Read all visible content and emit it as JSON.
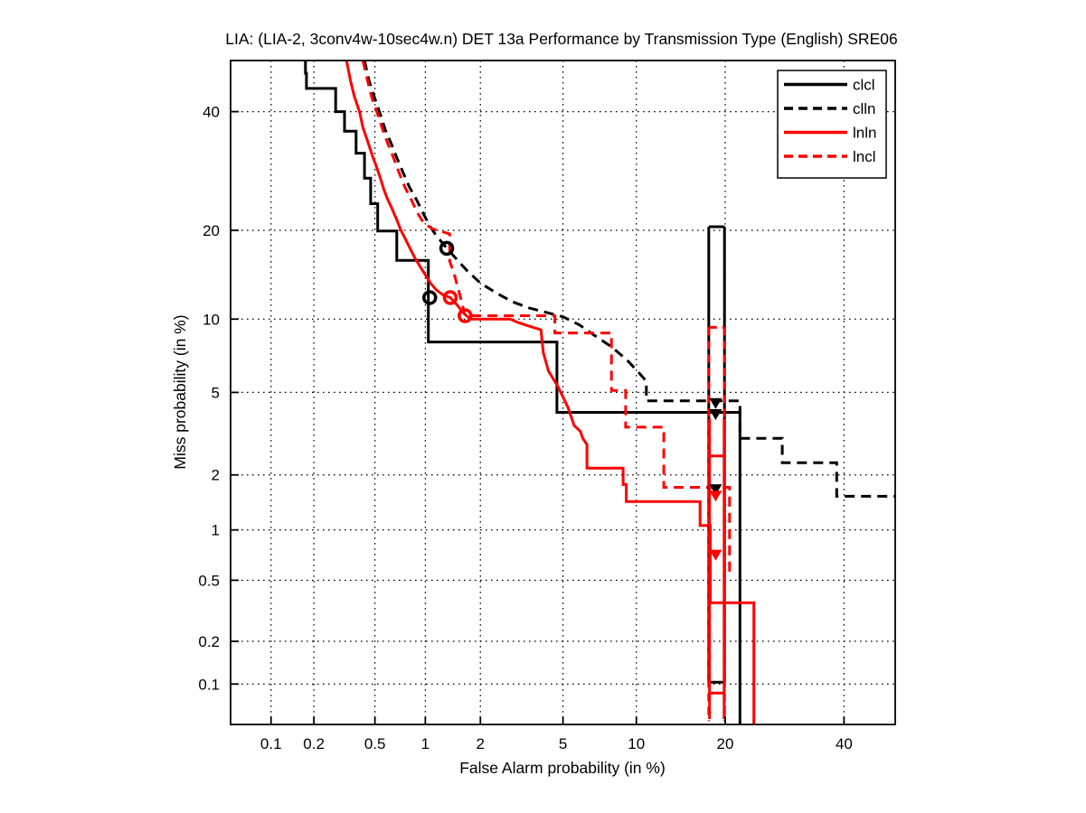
{
  "chart_data": {
    "type": "line",
    "subtype": "DET-curve",
    "title": "LIA: (LIA-2, 3conv4w-10sec4w.n) DET 13a Performance by Transmission Type (English) SRE06",
    "xlabel": "False Alarm probability (in %)",
    "ylabel": "Miss probability (in %)",
    "scale": "normal-deviate-probit",
    "xlim": [
      0.05,
      50
    ],
    "ylim": [
      0.05,
      50
    ],
    "xticks": [
      "0.1",
      "0.2",
      "0.5",
      "1",
      "2",
      "5",
      "10",
      "20",
      "40"
    ],
    "yticks": [
      "0.1",
      "0.2",
      "0.5",
      "1",
      "2",
      "5",
      "10",
      "20",
      "40"
    ],
    "grid": "dotted",
    "legend_position": "top-right",
    "colors": {
      "black": "#000000",
      "red": "#ff0000"
    },
    "series": [
      {
        "name": "clcl",
        "color": "#000000",
        "dash": "solid",
        "points": [
          [
            0.175,
            50
          ],
          [
            0.175,
            47.5
          ],
          [
            0.178,
            47.5
          ],
          [
            0.178,
            44.5
          ],
          [
            0.28,
            44.5
          ],
          [
            0.28,
            40
          ],
          [
            0.32,
            40
          ],
          [
            0.32,
            36.3
          ],
          [
            0.38,
            36.3
          ],
          [
            0.38,
            32.3
          ],
          [
            0.43,
            32.3
          ],
          [
            0.43,
            28
          ],
          [
            0.47,
            28
          ],
          [
            0.47,
            23.9
          ],
          [
            0.52,
            23.9
          ],
          [
            0.52,
            19.9
          ],
          [
            0.68,
            19.9
          ],
          [
            0.68,
            16.1
          ],
          [
            1.04,
            16.1
          ],
          [
            1.04,
            8.15
          ],
          [
            4.7,
            8.15
          ],
          [
            4.7,
            4.06
          ],
          [
            22.1,
            4.06
          ],
          [
            22.1,
            0.05
          ]
        ]
      },
      {
        "name": "clln",
        "color": "#000000",
        "dash": "dashed",
        "points": [
          [
            0.43,
            50
          ],
          [
            0.46,
            46
          ],
          [
            0.5,
            42.5
          ],
          [
            0.54,
            39.5
          ],
          [
            0.58,
            36.5
          ],
          [
            0.63,
            34
          ],
          [
            0.68,
            31.5
          ],
          [
            0.74,
            29
          ],
          [
            0.81,
            26.5
          ],
          [
            0.89,
            24.5
          ],
          [
            0.97,
            22.5
          ],
          [
            1.05,
            20.8
          ],
          [
            1.15,
            19.3
          ],
          [
            1.25,
            18.3
          ],
          [
            1.32,
            17.6
          ],
          [
            1.5,
            16.2
          ],
          [
            1.7,
            14.9
          ],
          [
            2.0,
            13.5
          ],
          [
            2.4,
            12.5
          ],
          [
            2.9,
            11.6
          ],
          [
            3.5,
            11.0
          ],
          [
            4.2,
            10.6
          ],
          [
            5.0,
            10.2
          ],
          [
            5.9,
            9.5
          ],
          [
            6.9,
            8.6
          ],
          [
            8.0,
            7.8
          ],
          [
            9.2,
            6.9
          ],
          [
            10.2,
            6.1
          ],
          [
            10.9,
            5.6
          ],
          [
            10.9,
            4.58
          ],
          [
            22.1,
            4.58
          ],
          [
            22.1,
            3.06
          ],
          [
            28.8,
            3.06
          ],
          [
            28.8,
            2.31
          ],
          [
            38.6,
            2.31
          ],
          [
            38.6,
            1.54
          ],
          [
            50,
            1.54
          ]
        ]
      },
      {
        "name": "lnln",
        "color": "#ff0000",
        "dash": "solid",
        "points": [
          [
            0.33,
            50
          ],
          [
            0.35,
            46
          ],
          [
            0.37,
            43
          ],
          [
            0.4,
            40
          ],
          [
            0.42,
            37
          ],
          [
            0.45,
            34.5
          ],
          [
            0.48,
            32
          ],
          [
            0.51,
            30
          ],
          [
            0.54,
            28
          ],
          [
            0.57,
            26
          ],
          [
            0.6,
            24.5
          ],
          [
            0.64,
            23
          ],
          [
            0.68,
            21.5
          ],
          [
            0.72,
            20
          ],
          [
            0.77,
            18.7
          ],
          [
            0.82,
            17.5
          ],
          [
            0.87,
            16.4
          ],
          [
            0.93,
            15.4
          ],
          [
            1.0,
            14.4
          ],
          [
            1.07,
            13.5
          ],
          [
            1.15,
            12.8
          ],
          [
            1.25,
            12.3
          ],
          [
            1.38,
            12.0
          ],
          [
            1.5,
            11.3
          ],
          [
            1.6,
            10.7
          ],
          [
            1.7,
            10.25
          ],
          [
            1.79,
            10.0
          ],
          [
            2.83,
            10.0
          ],
          [
            3.1,
            9.7
          ],
          [
            3.5,
            9.4
          ],
          [
            3.97,
            9.1
          ],
          [
            4.07,
            7.4
          ],
          [
            4.3,
            6.2
          ],
          [
            4.75,
            5.3
          ],
          [
            5.25,
            4.3
          ],
          [
            5.6,
            3.52
          ],
          [
            5.95,
            3.3
          ],
          [
            6.1,
            3.05
          ],
          [
            6.35,
            2.85
          ],
          [
            6.35,
            2.17
          ],
          [
            8.9,
            2.17
          ],
          [
            8.9,
            1.78
          ],
          [
            9.15,
            1.78
          ],
          [
            9.15,
            1.44
          ],
          [
            16.7,
            1.44
          ],
          [
            16.7,
            1.06
          ],
          [
            18.0,
            1.06
          ],
          [
            18.0,
            0.36
          ],
          [
            24.2,
            0.36
          ],
          [
            24.2,
            0.05
          ]
        ]
      },
      {
        "name": "lncl",
        "color": "#ff0000",
        "dash": "dashed",
        "points": [
          [
            0.42,
            50
          ],
          [
            0.45,
            46
          ],
          [
            0.48,
            42.5
          ],
          [
            0.52,
            39.5
          ],
          [
            0.56,
            36.5
          ],
          [
            0.6,
            34
          ],
          [
            0.65,
            31.5
          ],
          [
            0.7,
            29
          ],
          [
            0.76,
            26.5
          ],
          [
            0.83,
            24.5
          ],
          [
            0.9,
            22.5
          ],
          [
            0.98,
            21
          ],
          [
            1.1,
            20.2
          ],
          [
            1.25,
            19.8
          ],
          [
            1.37,
            19.5
          ],
          [
            1.37,
            16
          ],
          [
            1.45,
            14.5
          ],
          [
            1.52,
            13
          ],
          [
            1.58,
            11.8
          ],
          [
            1.63,
            10.8
          ],
          [
            1.66,
            10.3
          ],
          [
            4.6,
            10.3
          ],
          [
            4.6,
            8.85
          ],
          [
            8.0,
            8.85
          ],
          [
            8.0,
            5.1
          ],
          [
            9.1,
            5.1
          ],
          [
            9.1,
            3.46
          ],
          [
            12.6,
            3.46
          ],
          [
            12.6,
            1.72
          ],
          [
            20.6,
            1.72
          ],
          [
            20.6,
            0.55
          ]
        ]
      }
    ],
    "operating_point_circles": [
      {
        "series": "clcl",
        "color": "#000000",
        "fa": 1.06,
        "miss": 12.0
      },
      {
        "series": "clln",
        "color": "#000000",
        "fa": 1.32,
        "miss": 17.6
      },
      {
        "series": "lnln",
        "color": "#ff0000",
        "fa": 1.38,
        "miss": 12.0
      },
      {
        "series": "lncl",
        "color": "#ff0000",
        "fa": 1.66,
        "miss": 10.3
      }
    ],
    "dcf_markers": [
      {
        "color": "#000000",
        "fa": 18.7,
        "miss": 4.5
      },
      {
        "color": "#000000",
        "fa": 18.7,
        "miss": 4.0
      },
      {
        "color": "#000000",
        "fa": 18.7,
        "miss": 1.69
      },
      {
        "color": "#ff0000",
        "fa": 18.7,
        "miss": 1.56
      },
      {
        "color": "#ff0000",
        "fa": 18.7,
        "miss": 0.72
      }
    ],
    "decision_boxes": [
      {
        "color": "#000000",
        "dash": "solid",
        "segments": [
          [
            [
              17.8,
              20.5
            ],
            [
              19.9,
              20.5
            ]
          ],
          [
            [
              17.8,
              20.5
            ],
            [
              17.8,
              0.103
            ]
          ],
          [
            [
              19.9,
              20.5
            ],
            [
              19.9,
              0.103
            ]
          ],
          [
            [
              17.8,
              0.103
            ],
            [
              19.9,
              0.103
            ]
          ]
        ]
      },
      {
        "color": "#ff0000",
        "dash": "dashed",
        "segments": [
          [
            [
              17.8,
              9.3
            ],
            [
              19.9,
              9.3
            ]
          ],
          [
            [
              17.8,
              9.3
            ],
            [
              17.8,
              0.053
            ]
          ],
          [
            [
              19.9,
              9.3
            ],
            [
              19.9,
              0.053
            ]
          ]
        ]
      },
      {
        "color": "#ff0000",
        "dash": "solid",
        "segments": [
          [
            [
              17.9,
              3.8
            ],
            [
              17.9,
              0.055
            ]
          ],
          [
            [
              19.85,
              3.8
            ],
            [
              19.85,
              0.055
            ]
          ],
          [
            [
              17.9,
              2.5
            ],
            [
              19.85,
              2.5
            ]
          ],
          [
            [
              17.9,
              0.086
            ],
            [
              19.85,
              0.086
            ]
          ]
        ]
      }
    ],
    "legend": [
      {
        "label": "clcl",
        "color": "#000000",
        "dash": "solid"
      },
      {
        "label": "clln",
        "color": "#000000",
        "dash": "dashed"
      },
      {
        "label": "lnln",
        "color": "#ff0000",
        "dash": "solid"
      },
      {
        "label": "lncl",
        "color": "#ff0000",
        "dash": "dashed"
      }
    ]
  }
}
